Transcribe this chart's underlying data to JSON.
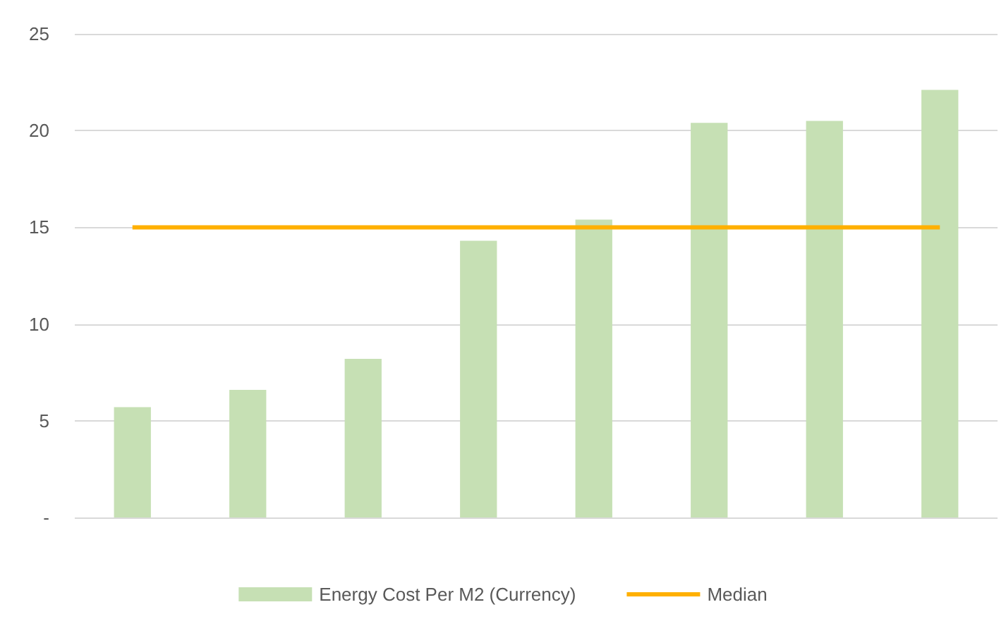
{
  "chart_data": {
    "type": "bar",
    "categories": [
      null,
      null,
      null,
      null,
      null,
      null,
      null,
      null
    ],
    "series": [
      {
        "name": "Energy Cost Per M2 (Currency)",
        "color": "#c6e0b4",
        "values": [
          5.7,
          6.6,
          8.2,
          14.3,
          15.4,
          20.4,
          20.5,
          22.1
        ]
      },
      {
        "name": "Median",
        "type": "line",
        "color": "#ffb000",
        "marker": "none",
        "line_style": "solid",
        "values": [
          15,
          15,
          15,
          15,
          15,
          15,
          15,
          15
        ]
      }
    ],
    "ylim": [
      0,
      25
    ],
    "yticks": [
      {
        "value": 0,
        "label": "-"
      },
      5,
      10,
      15,
      20,
      25
    ],
    "grid": "y",
    "legend": "bottom",
    "tick_labels": "y"
  }
}
